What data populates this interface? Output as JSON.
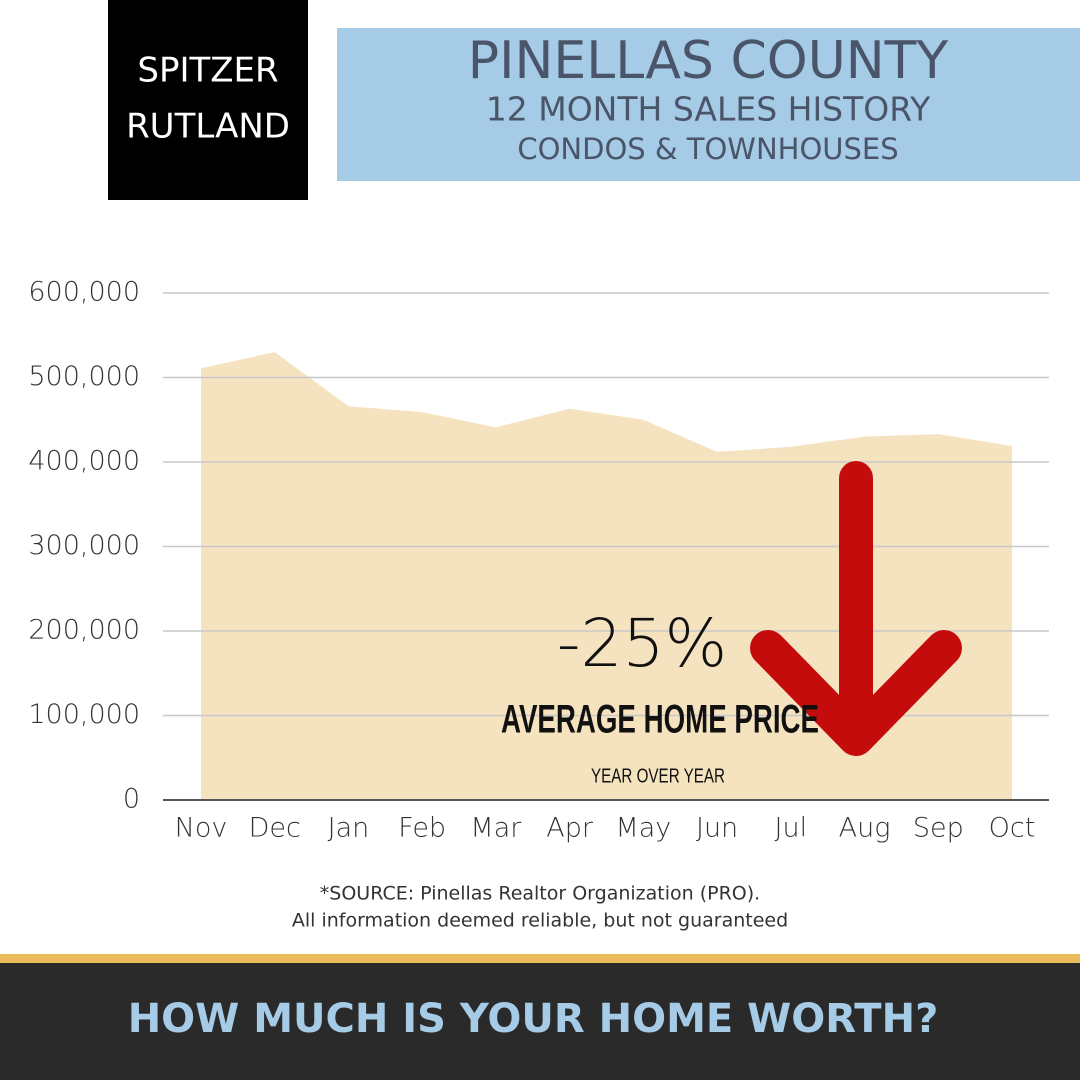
{
  "logo": {
    "lines": [
      "SPITZER",
      "RUTLAND"
    ]
  },
  "header": {
    "title": "PINELLAS COUNTY",
    "subtitle_lines": [
      "12 MONTH SALES HISTORY",
      "CONDOS & TOWNHOUSES"
    ]
  },
  "chart_data": {
    "type": "area",
    "categories": [
      "Nov",
      "Dec",
      "Jan",
      "Feb",
      "Mar",
      "Apr",
      "May",
      "Jun",
      "Jul",
      "Aug",
      "Sep",
      "Oct"
    ],
    "values": [
      511000,
      530000,
      466000,
      459000,
      441000,
      463000,
      450000,
      412000,
      418000,
      430000,
      433000,
      419000
    ],
    "color": "#f5e3c0",
    "ylim": [
      0,
      600000
    ],
    "yticks": [
      0,
      {
        "value": 100000,
        "label": "100,000"
      },
      {
        "value": 200000,
        "label": "200,000"
      },
      {
        "value": 300000,
        "label": "300,000"
      },
      {
        "value": 400000,
        "label": "400,000"
      },
      {
        "value": 500000,
        "label": "500,000"
      },
      {
        "value": 600000,
        "label": "600,000"
      }
    ],
    "grid": true,
    "annotations": [
      "-25%",
      "AVERAGE HOME PRICE",
      "YEAR OVER YEAR"
    ]
  },
  "source": [
    "*SOURCE: Pinellas Realtor Organization (PRO).",
    "All information deemed reliable, but not guaranteed"
  ],
  "footer": {
    "cta": "HOW MUCH IS YOUR HOME WORTH?"
  }
}
